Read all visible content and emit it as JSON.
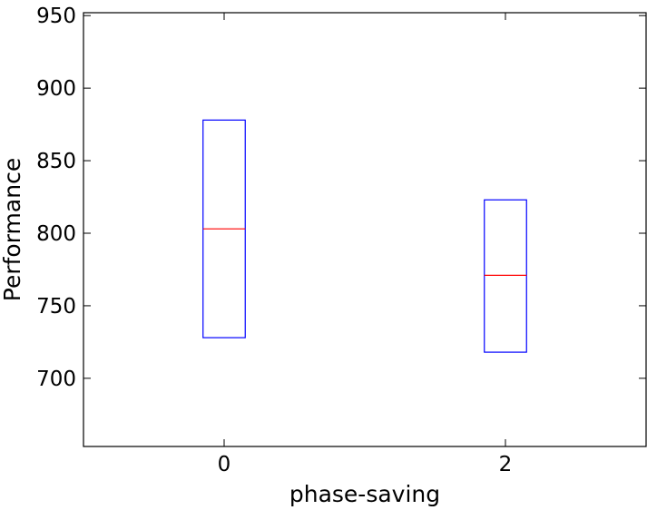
{
  "chart_data": {
    "type": "box",
    "xlabel": "phase-saving",
    "ylabel": "Performance",
    "x": [
      0,
      2
    ],
    "boxes": [
      {
        "x": 0,
        "q1": 728,
        "median": 803,
        "q3": 878
      },
      {
        "x": 2,
        "q1": 718,
        "median": 771,
        "q3": 823
      }
    ],
    "box_color": "#0000ff",
    "median_color": "#ff0000",
    "xlim": [
      -1,
      3
    ],
    "xticks": [
      0,
      2
    ],
    "ylim": [
      653,
      952
    ],
    "yticks": [
      700,
      750,
      800,
      850,
      900,
      950
    ]
  }
}
